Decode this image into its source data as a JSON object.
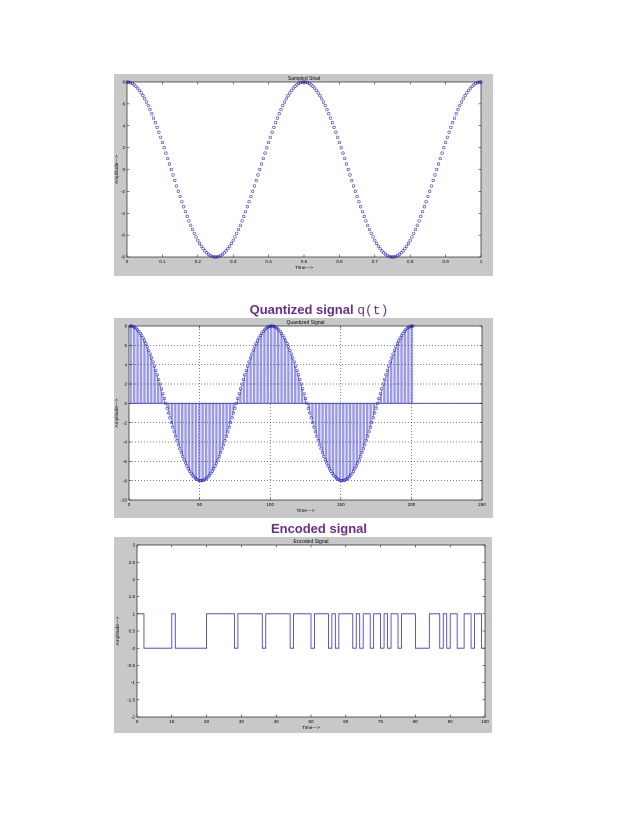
{
  "captions": {
    "quantized_prefix": "Quantized signal ",
    "quantized_func": "q(t)",
    "encoded": "Encoded signal"
  },
  "colors": {
    "signal": "#3030d8",
    "figure_bg": "#c8c8c8",
    "axes_bg": "#ffffff",
    "caption": "#6a2c91"
  },
  "chart_data": [
    {
      "type": "scatter",
      "title": "Sampled Sinal",
      "xlabel": "Time--->",
      "ylabel": "Amplitude--->",
      "xlim": [
        0,
        1
      ],
      "ylim": [
        -8,
        8
      ],
      "xticks": [
        0,
        0.1,
        0.2,
        0.3,
        0.4,
        0.5,
        0.6,
        0.7,
        0.8,
        0.9,
        1
      ],
      "xticklabels": [
        "0",
        "0.1",
        "0.2",
        "0.3",
        "0.4",
        "0.5",
        "0.6",
        "0.7",
        "0.8",
        "0.9",
        "1"
      ],
      "yticks": [
        -8,
        -6,
        -4,
        -2,
        0,
        2,
        4,
        6,
        8
      ],
      "yticklabels": [
        "-8",
        "-6",
        "-4",
        "-2",
        "0",
        "2",
        "4",
        "6",
        "8"
      ],
      "grid": false,
      "marker": "circle",
      "signal": {
        "function": "cosine",
        "amplitude": 8,
        "frequency": 2,
        "x_start": 0,
        "x_end": 1,
        "sample_count": 201
      }
    },
    {
      "type": "bar",
      "style": "stem",
      "title": "Quantized Signal",
      "xlabel": "Time--->",
      "ylabel": "Amplitude--->",
      "xlim": [
        0,
        250
      ],
      "ylim": [
        -10,
        8
      ],
      "xticks": [
        0,
        50,
        100,
        150,
        200,
        250
      ],
      "xticklabels": [
        "0",
        "50",
        "100",
        "150",
        "200",
        "250"
      ],
      "yticks": [
        -10,
        -8,
        -6,
        -4,
        -2,
        0,
        2,
        4,
        6,
        8
      ],
      "yticklabels": [
        "-10",
        "-8",
        "-6",
        "-4",
        "-2",
        "0",
        "2",
        "4",
        "6",
        "8"
      ],
      "grid": true,
      "marker": "circle",
      "signal": {
        "function": "cosine",
        "amplitude": 8,
        "period": 100,
        "x_start": 1,
        "x_end": 201,
        "sample_count": 201
      }
    },
    {
      "type": "line",
      "style": "stairs",
      "title": "Encoded Signal",
      "xlabel": "Time--->",
      "ylabel": "Amplitude--->",
      "xlim": [
        0,
        100
      ],
      "ylim": [
        -2,
        3
      ],
      "xticks": [
        0,
        10,
        20,
        30,
        40,
        50,
        60,
        70,
        80,
        90,
        100
      ],
      "xticklabels": [
        "0",
        "10",
        "20",
        "30",
        "40",
        "50",
        "60",
        "70",
        "80",
        "90",
        "100"
      ],
      "yticks": [
        -2,
        -1.5,
        -1,
        -0.5,
        0,
        0.5,
        1,
        1.5,
        2,
        2.5,
        3
      ],
      "yticklabels": [
        "-2",
        "-1.5",
        "-1",
        "-0.5",
        "0",
        "0.5",
        "1",
        "1.5",
        "2",
        "2.5",
        "3"
      ],
      "grid": false,
      "levels": [
        1,
        1,
        0,
        0,
        0,
        0,
        0,
        0,
        0,
        0,
        1,
        0,
        0,
        0,
        0,
        0,
        0,
        0,
        0,
        0,
        1,
        1,
        1,
        1,
        1,
        1,
        1,
        1,
        0,
        1,
        1,
        1,
        1,
        1,
        1,
        1,
        0,
        1,
        1,
        1,
        1,
        1,
        1,
        1,
        0,
        1,
        1,
        1,
        1,
        1,
        0,
        1,
        1,
        1,
        1,
        0,
        1,
        0,
        1,
        1,
        1,
        1,
        0,
        1,
        0,
        1,
        1,
        0,
        1,
        1,
        0,
        1,
        0,
        1,
        1,
        0,
        1,
        1,
        1,
        1,
        0,
        0,
        0,
        0,
        1,
        1,
        1,
        0,
        1,
        0,
        1,
        1,
        0,
        0,
        1,
        1,
        0,
        1,
        1,
        0,
        0
      ]
    }
  ]
}
